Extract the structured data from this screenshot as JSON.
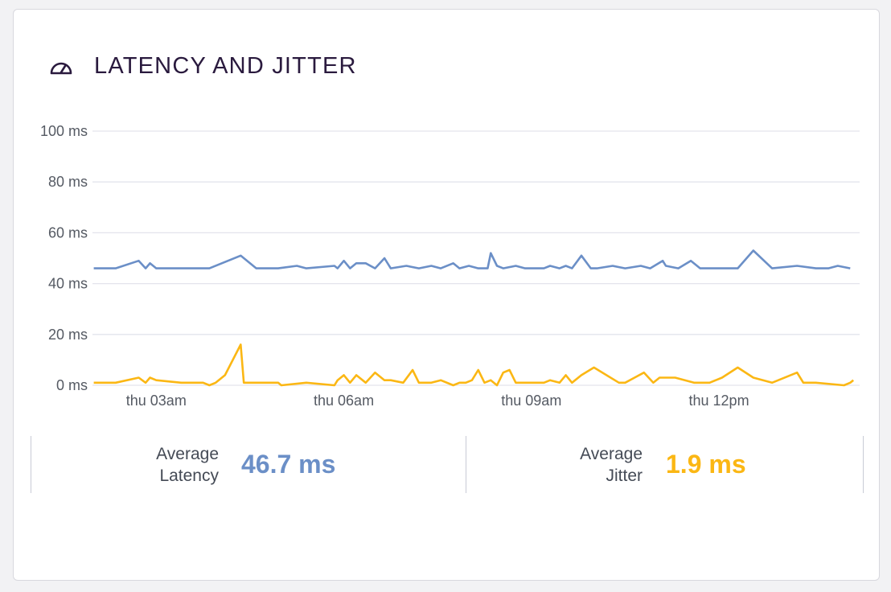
{
  "header": {
    "title": "LATENCY AND JITTER",
    "icon": "speedometer-icon"
  },
  "colors": {
    "latency": "#6b8fc7",
    "jitter": "#fbb714",
    "title": "#2a1a3e",
    "grid": "#e3e4ec",
    "axis_text": "#555a63"
  },
  "stats": {
    "latency": {
      "label_line1": "Average",
      "label_line2": "Latency",
      "value": "46.7 ms"
    },
    "jitter": {
      "label_line1": "Average",
      "label_line2": "Jitter",
      "value": "1.9 ms"
    }
  },
  "chart_data": {
    "type": "line",
    "title": "",
    "xlabel": "",
    "ylabel": "",
    "ylim": [
      0,
      100
    ],
    "grid": true,
    "y_ticks": [
      {
        "value": 0,
        "label": "0 ms"
      },
      {
        "value": 20,
        "label": "20 ms"
      },
      {
        "value": 40,
        "label": "40 ms"
      },
      {
        "value": 60,
        "label": "60 ms"
      },
      {
        "value": 80,
        "label": "80 ms"
      },
      {
        "value": 100,
        "label": "100 ms"
      }
    ],
    "x_unit": "hours since 00:00 Thursday",
    "xlim": [
      1.98,
      14.25
    ],
    "x_ticks": [
      {
        "value": 3,
        "label": "thu 03am"
      },
      {
        "value": 6,
        "label": "thu 06am"
      },
      {
        "value": 9,
        "label": "thu 09am"
      },
      {
        "value": 12,
        "label": "thu 12pm"
      }
    ],
    "series": [
      {
        "name": "Latency",
        "x": [
          2.0,
          2.35,
          2.72,
          2.83,
          2.9,
          3.0,
          3.5,
          3.85,
          4.35,
          4.6,
          4.95,
          5.25,
          5.4,
          5.85,
          5.9,
          6.0,
          6.1,
          6.2,
          6.35,
          6.5,
          6.65,
          6.75,
          7.0,
          7.2,
          7.4,
          7.55,
          7.75,
          7.85,
          8.0,
          8.15,
          8.3,
          8.35,
          8.45,
          8.55,
          8.75,
          8.9,
          9.2,
          9.3,
          9.45,
          9.55,
          9.65,
          9.8,
          9.95,
          10.05,
          10.3,
          10.5,
          10.75,
          10.9,
          11.1,
          11.15,
          11.35,
          11.55,
          11.7,
          11.95,
          12.3,
          12.55,
          12.85,
          13.25,
          13.55,
          13.75,
          13.9,
          14.1
        ],
        "values": [
          46,
          46,
          49,
          46,
          48,
          46,
          46,
          46,
          51,
          46,
          46,
          47,
          46,
          47,
          46,
          49,
          46,
          48,
          48,
          46,
          50,
          46,
          47,
          46,
          47,
          46,
          48,
          46,
          47,
          46,
          46,
          52,
          47,
          46,
          47,
          46,
          46,
          47,
          46,
          47,
          46,
          51,
          46,
          46,
          47,
          46,
          47,
          46,
          49,
          47,
          46,
          49,
          46,
          46,
          46,
          53,
          46,
          47,
          46,
          46,
          47,
          46
        ]
      },
      {
        "name": "Jitter",
        "x": [
          2.0,
          2.35,
          2.72,
          2.83,
          2.9,
          3.0,
          3.4,
          3.75,
          3.85,
          3.95,
          4.1,
          4.35,
          4.4,
          4.6,
          4.95,
          5.0,
          5.4,
          5.85,
          5.9,
          6.0,
          6.1,
          6.2,
          6.35,
          6.5,
          6.65,
          6.75,
          6.95,
          7.1,
          7.2,
          7.4,
          7.55,
          7.75,
          7.85,
          7.95,
          8.05,
          8.15,
          8.25,
          8.35,
          8.45,
          8.55,
          8.65,
          8.75,
          9.1,
          9.2,
          9.3,
          9.45,
          9.55,
          9.65,
          9.8,
          10.0,
          10.4,
          10.5,
          10.65,
          10.8,
          10.95,
          11.05,
          11.3,
          11.6,
          11.75,
          11.85,
          12.05,
          12.3,
          12.55,
          12.85,
          13.25,
          13.35,
          13.55,
          14.0,
          14.1,
          14.15
        ],
        "values": [
          1,
          1,
          3,
          1,
          3,
          2,
          1,
          1,
          0,
          1,
          4,
          16,
          1,
          1,
          1,
          0,
          1,
          0,
          2,
          4,
          1,
          4,
          1,
          5,
          2,
          2,
          1,
          6,
          1,
          1,
          2,
          0,
          1,
          1,
          2,
          6,
          1,
          2,
          0,
          5,
          6,
          1,
          1,
          1,
          2,
          1,
          4,
          1,
          4,
          7,
          1,
          1,
          3,
          5,
          1,
          3,
          3,
          1,
          1,
          1,
          3,
          7,
          3,
          1,
          5,
          1,
          1,
          0,
          1,
          2
        ]
      }
    ]
  }
}
